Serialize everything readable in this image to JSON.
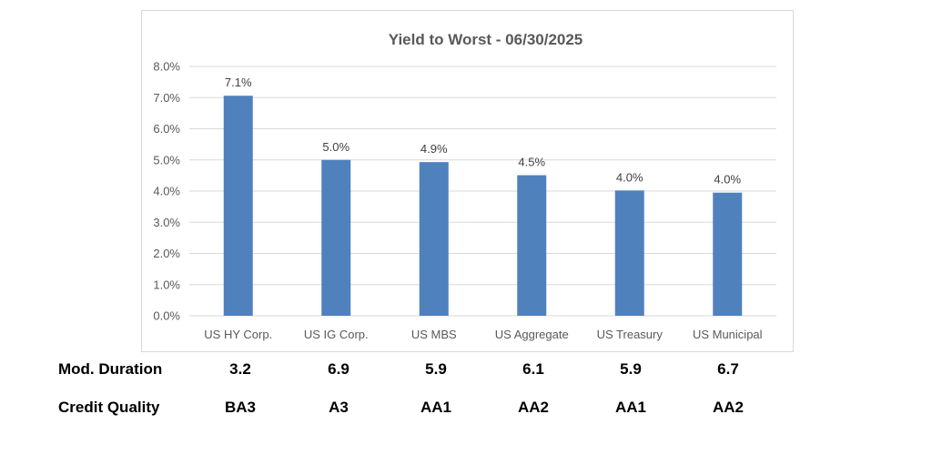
{
  "chart_data": {
    "type": "bar",
    "title": "Yield to Worst - 06/30/2025",
    "categories": [
      "US HY Corp.",
      "US IG Corp.",
      "US MBS",
      "US Aggregate",
      "US Treasury",
      "US Municipal"
    ],
    "values": [
      7.06,
      5.0,
      4.93,
      4.51,
      4.02,
      3.95
    ],
    "data_labels": [
      "7.1%",
      "5.0%",
      "4.9%",
      "4.5%",
      "4.0%",
      "4.0%"
    ],
    "y_ticks": [
      "0.0%",
      "1.0%",
      "2.0%",
      "3.0%",
      "4.0%",
      "5.0%",
      "6.0%",
      "7.0%",
      "8.0%"
    ],
    "ylim": [
      0,
      8
    ],
    "xlabel": "",
    "ylabel": "",
    "grid": true,
    "legend": "none",
    "bar_color": "#4f81bd",
    "grid_color": "#d9d9d9"
  },
  "table": {
    "rows": [
      {
        "label": "Mod. Duration",
        "values": [
          "3.2",
          "6.9",
          "5.9",
          "6.1",
          "5.9",
          "6.7"
        ]
      },
      {
        "label": "Credit Quality",
        "values": [
          "BA3",
          "A3",
          "AA1",
          "AA2",
          "AA1",
          "AA2"
        ]
      }
    ]
  }
}
